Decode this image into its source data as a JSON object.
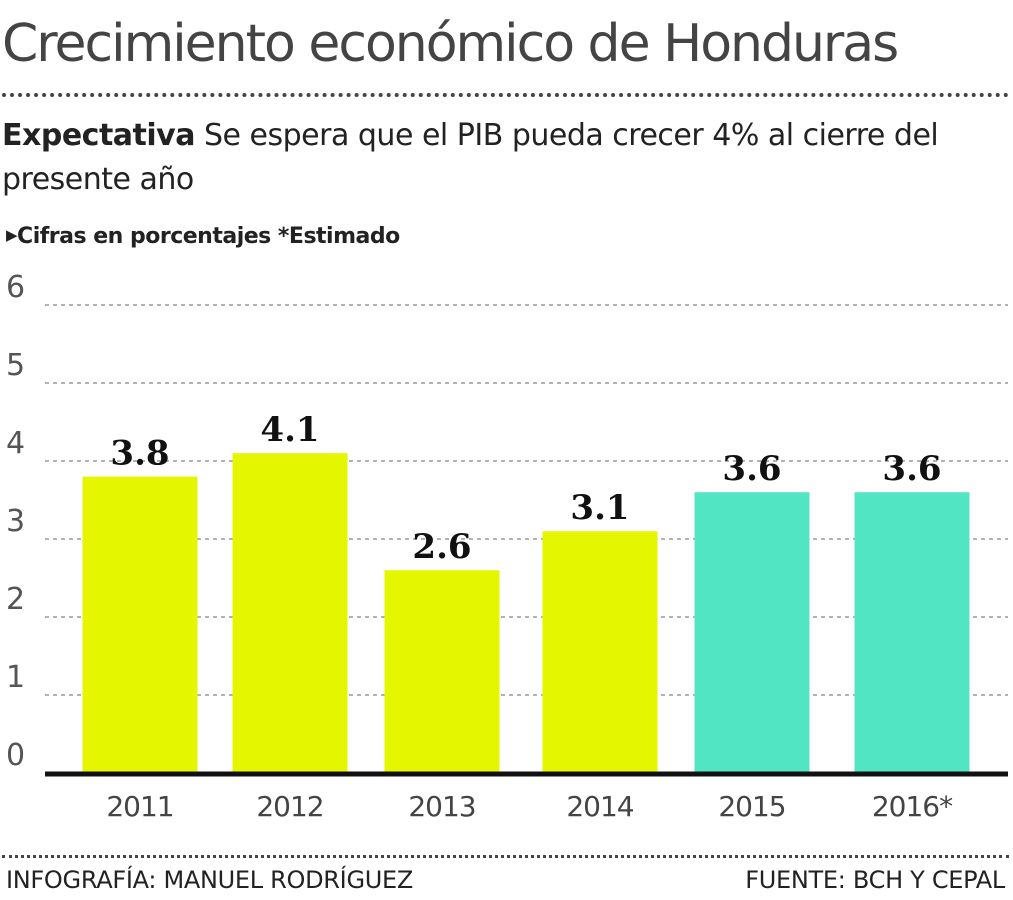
{
  "header": {
    "title": "Crecimiento económico de Honduras",
    "subtitle_bold": "Expectativa",
    "subtitle_text": "Se espera que el PIB pueda crecer 4% al cierre del presente año",
    "note": "Cifras en porcentajes *Estimado"
  },
  "footer": {
    "credit": "INFOGRAFÍA: MANUEL RODRÍGUEZ",
    "source": "FUENTE: BCH Y CEPAL"
  },
  "colors": {
    "actual": "#e4f700",
    "estimated": "#52e5c4"
  },
  "chart_data": {
    "type": "bar",
    "title": "Crecimiento económico de Honduras",
    "xlabel": "",
    "ylabel": "",
    "ylim": [
      0,
      6
    ],
    "yticks": [
      "0",
      "1",
      "2",
      "3",
      "4",
      "5",
      "6"
    ],
    "grid": true,
    "categories": [
      "2011",
      "2012",
      "2013",
      "2014",
      "2015",
      "2016*"
    ],
    "values": [
      3.8,
      4.1,
      2.6,
      3.1,
      3.6,
      3.6
    ],
    "labels": [
      "3.8",
      "4.1",
      "2.6",
      "3.1",
      "3.6",
      "3.6"
    ],
    "bar_colors": [
      "#e4f700",
      "#e4f700",
      "#e4f700",
      "#e4f700",
      "#52e5c4",
      "#52e5c4"
    ]
  }
}
